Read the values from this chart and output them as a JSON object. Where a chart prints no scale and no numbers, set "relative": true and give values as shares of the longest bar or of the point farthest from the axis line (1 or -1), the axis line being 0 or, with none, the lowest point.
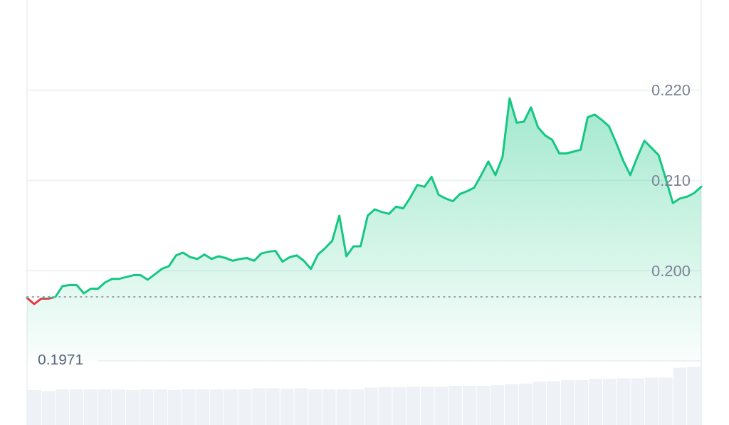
{
  "chart_data": [
    {
      "type": "area",
      "ylim": [
        0.19,
        0.23
      ],
      "yticks": [
        {
          "value": 0.2,
          "label": "0.200"
        },
        {
          "value": 0.21,
          "label": "0.210"
        },
        {
          "value": 0.22,
          "label": "0.220"
        }
      ],
      "tick_labels": "y",
      "grid": "y",
      "categories": [
        null,
        null,
        null,
        null,
        null,
        null,
        null,
        null,
        null,
        null,
        null,
        null,
        null,
        null,
        null,
        null,
        null,
        null,
        null,
        null,
        null,
        null,
        null,
        null,
        null,
        null,
        null,
        null,
        null,
        null,
        null,
        null,
        null,
        null,
        null,
        null,
        null,
        null,
        null,
        null,
        null,
        null,
        null,
        null,
        null,
        null,
        null,
        null,
        null,
        null,
        null,
        null,
        null,
        null,
        null,
        null,
        null,
        null,
        null,
        null,
        null,
        null,
        null,
        null,
        null,
        null,
        null,
        null,
        null,
        null,
        null,
        null,
        null,
        null,
        null,
        null,
        null,
        null,
        null,
        null,
        null,
        null,
        null,
        null,
        null,
        null,
        null,
        null,
        null,
        null,
        null,
        null,
        null,
        null,
        null,
        null
      ],
      "series": [
        {
          "type": "area",
          "color": "#16c784",
          "values": [
            0.197,
            0.1963,
            0.1969,
            0.1969,
            0.1971,
            0.1983,
            0.1984,
            0.1984,
            0.1975,
            0.198,
            0.198,
            0.1987,
            0.1991,
            0.1991,
            0.1993,
            0.1995,
            0.1995,
            0.199,
            0.1996,
            0.2002,
            0.2005,
            0.2017,
            0.202,
            0.2015,
            0.2013,
            0.2018,
            0.2013,
            0.2016,
            0.2014,
            0.2011,
            0.2013,
            0.2014,
            0.2011,
            0.2019,
            0.2021,
            0.2022,
            0.201,
            0.2015,
            0.2017,
            0.2011,
            0.2002,
            0.2018,
            0.2025,
            0.2033,
            0.2061,
            0.2016,
            0.2027,
            0.2027,
            0.2061,
            0.2068,
            0.2065,
            0.2063,
            0.2071,
            0.2069,
            0.2081,
            0.2095,
            0.2093,
            0.2104,
            0.2084,
            0.208,
            0.2077,
            0.2085,
            0.2088,
            0.2092,
            0.2106,
            0.2121,
            0.2106,
            0.2126,
            0.2191,
            0.2164,
            0.2165,
            0.2181,
            0.2159,
            0.215,
            0.2145,
            0.213,
            0.213,
            0.2132,
            0.2134,
            0.217,
            0.2173,
            0.2167,
            0.216,
            0.2142,
            0.2122,
            0.2106,
            0.2126,
            0.2144,
            0.2136,
            0.2128,
            0.2102,
            0.2075,
            0.208,
            0.2082,
            0.2086,
            0.2093
          ]
        }
      ],
      "ref_lines": [
        {
          "axis": "y",
          "value": 0.1971,
          "color": "#a0a4ab",
          "line_style": "dotted"
        }
      ],
      "annotations": [
        "0.1971"
      ]
    },
    {
      "type": "bar",
      "relative": true,
      "tick_labels": false,
      "color": "#eef1f5",
      "categories": [
        null,
        null,
        null,
        null,
        null,
        null,
        null,
        null,
        null,
        null,
        null,
        null,
        null,
        null,
        null,
        null,
        null,
        null,
        null,
        null,
        null,
        null,
        null,
        null,
        null,
        null,
        null,
        null,
        null,
        null,
        null,
        null,
        null,
        null,
        null,
        null,
        null,
        null,
        null,
        null,
        null,
        null,
        null,
        null,
        null,
        null,
        null,
        null
      ],
      "values": [
        0.6,
        0.58,
        0.61,
        0.61,
        0.61,
        0.61,
        0.61,
        0.6,
        0.61,
        0.61,
        0.6,
        0.61,
        0.61,
        0.61,
        0.61,
        0.61,
        0.63,
        0.63,
        0.62,
        0.63,
        0.61,
        0.61,
        0.61,
        0.61,
        0.64,
        0.65,
        0.65,
        0.66,
        0.66,
        0.66,
        0.67,
        0.67,
        0.67,
        0.68,
        0.7,
        0.71,
        0.74,
        0.75,
        0.77,
        0.77,
        0.79,
        0.79,
        0.8,
        0.8,
        0.81,
        0.81,
        0.98,
        1.0
      ]
    }
  ]
}
